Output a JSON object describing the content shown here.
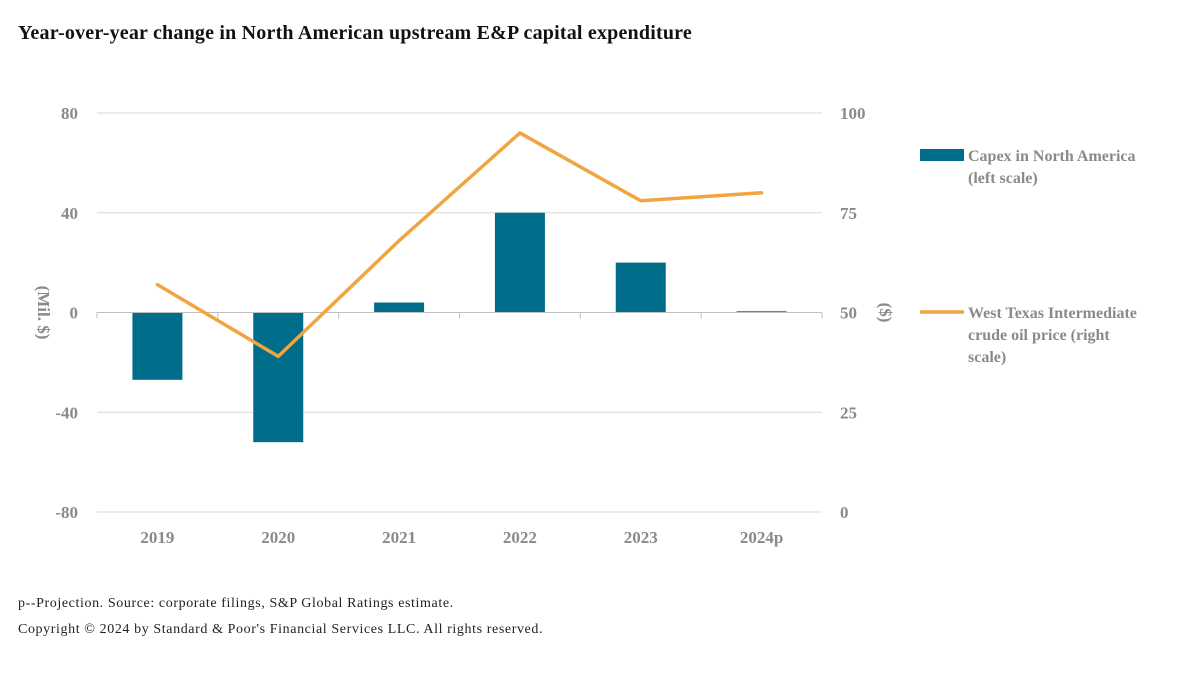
{
  "title": "Year-over-year change in North American upstream E&P capital expenditure",
  "footnote": "p--Projection. Source: corporate filings, S&P Global Ratings estimate.",
  "copyright": "Copyright © 2024 by Standard & Poor's Financial Services LLC. All rights reserved.",
  "colors": {
    "bar": "#006e8a",
    "line": "#f0a540",
    "tick": "#8a8a8a",
    "grid": "#d9d9d9"
  },
  "chart_data": {
    "type": "bar",
    "categories": [
      "2019",
      "2020",
      "2021",
      "2022",
      "2023",
      "2024p"
    ],
    "series": [
      {
        "name": "Capex in North America (left scale)",
        "type": "bar",
        "axis": "left",
        "values": [
          -27,
          -52,
          4,
          40,
          20,
          0.5
        ]
      },
      {
        "name": "West Texas Intermediate crude oil price (right scale)",
        "type": "line",
        "axis": "right",
        "values": [
          57,
          39,
          68,
          95,
          78,
          80
        ]
      }
    ],
    "ylabel": "(Mil. $)",
    "ylim": [
      -80,
      80
    ],
    "yticks": [
      "-80",
      "-40",
      "0",
      "40",
      "80"
    ],
    "y2label": "($)",
    "y2lim": [
      0,
      100
    ],
    "y2ticks": [
      "0",
      "25",
      "50",
      "75",
      "100"
    ],
    "legend_lines": [
      [
        "Capex in North America",
        "(left scale)"
      ],
      [
        "West Texas Intermediate",
        "crude oil price (right",
        "scale)"
      ]
    ],
    "legend_position": "right",
    "grid": true
  }
}
